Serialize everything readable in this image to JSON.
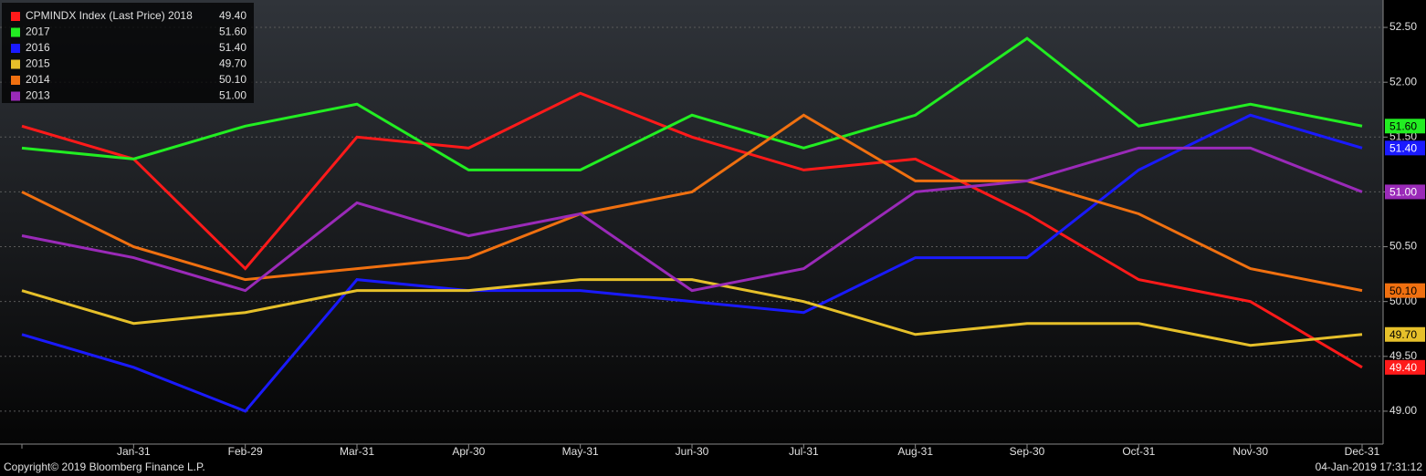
{
  "chart_data": {
    "type": "line",
    "categories": [
      null,
      "Jan-31",
      "Feb-29",
      "Mar-31",
      "Apr-30",
      "May-31",
      "Jun-30",
      "Jul-31",
      "Aug-31",
      "Sep-30",
      "Oct-31",
      "Nov-30",
      "Dec-31"
    ],
    "series": [
      {
        "name": "CPMINDX Index (Last Price) 2018",
        "color": "#ff1a1a",
        "values": [
          51.6,
          51.3,
          50.3,
          51.5,
          51.4,
          51.9,
          51.5,
          51.2,
          51.3,
          50.8,
          50.2,
          50.0,
          49.4
        ],
        "value_labels": [
          null,
          null,
          null,
          null,
          null,
          null,
          null,
          null,
          null,
          null,
          null,
          null,
          "49.40"
        ]
      },
      {
        "name": "2017",
        "color": "#22ee22",
        "values": [
          51.4,
          51.3,
          51.6,
          51.8,
          51.2,
          51.2,
          51.7,
          51.4,
          51.7,
          52.4,
          51.6,
          51.8,
          51.6
        ],
        "value_labels": [
          null,
          null,
          null,
          null,
          null,
          null,
          null,
          null,
          null,
          null,
          null,
          null,
          "51.60"
        ]
      },
      {
        "name": "2016",
        "color": "#1a1aff",
        "values": [
          49.7,
          49.4,
          49.0,
          50.2,
          50.1,
          50.1,
          50.0,
          49.9,
          50.4,
          50.4,
          51.2,
          51.7,
          51.4
        ],
        "value_labels": [
          null,
          null,
          null,
          null,
          null,
          null,
          null,
          null,
          null,
          null,
          null,
          null,
          "51.40"
        ]
      },
      {
        "name": "2015",
        "color": "#e6c02a",
        "values": [
          50.1,
          49.8,
          49.9,
          50.1,
          50.1,
          50.2,
          50.2,
          50.0,
          49.7,
          49.8,
          49.8,
          49.6,
          49.7
        ],
        "value_labels": [
          null,
          null,
          null,
          null,
          null,
          null,
          null,
          null,
          null,
          null,
          null,
          null,
          "49.70"
        ]
      },
      {
        "name": "2014",
        "color": "#f07010",
        "values": [
          51.0,
          50.5,
          50.2,
          50.3,
          50.4,
          50.8,
          51.0,
          51.7,
          51.1,
          51.1,
          50.8,
          50.3,
          50.1
        ],
        "value_labels": [
          null,
          null,
          null,
          null,
          null,
          null,
          null,
          null,
          null,
          null,
          null,
          null,
          "50.10"
        ]
      },
      {
        "name": "2013",
        "color": "#9a2ab8",
        "values": [
          50.6,
          50.4,
          50.1,
          50.9,
          50.6,
          50.8,
          50.1,
          50.3,
          51.0,
          51.1,
          51.4,
          51.4,
          51.0
        ],
        "value_labels": [
          null,
          null,
          null,
          null,
          null,
          null,
          null,
          null,
          null,
          null,
          null,
          null,
          "51.00"
        ]
      }
    ],
    "ylim": [
      48.7,
      52.75
    ],
    "yticks": [
      {
        "value": 49,
        "label": "49.00"
      },
      {
        "value": 49.5,
        "label": "49.50"
      },
      {
        "value": 50,
        "label": "50.00"
      },
      {
        "value": 50.5,
        "label": "50.50"
      },
      {
        "value": 51,
        "label": "51.00"
      },
      {
        "value": 51.5,
        "label": "51.50"
      },
      {
        "value": 52,
        "label": "52.00"
      },
      {
        "value": 52.5,
        "label": "52.50"
      }
    ],
    "grid": true,
    "legend": "top-left",
    "footer": {
      "copyright": "Copyright© 2019 Bloomberg Finance L.P.",
      "timestamp": "04-Jan-2019 17:31:12"
    }
  }
}
